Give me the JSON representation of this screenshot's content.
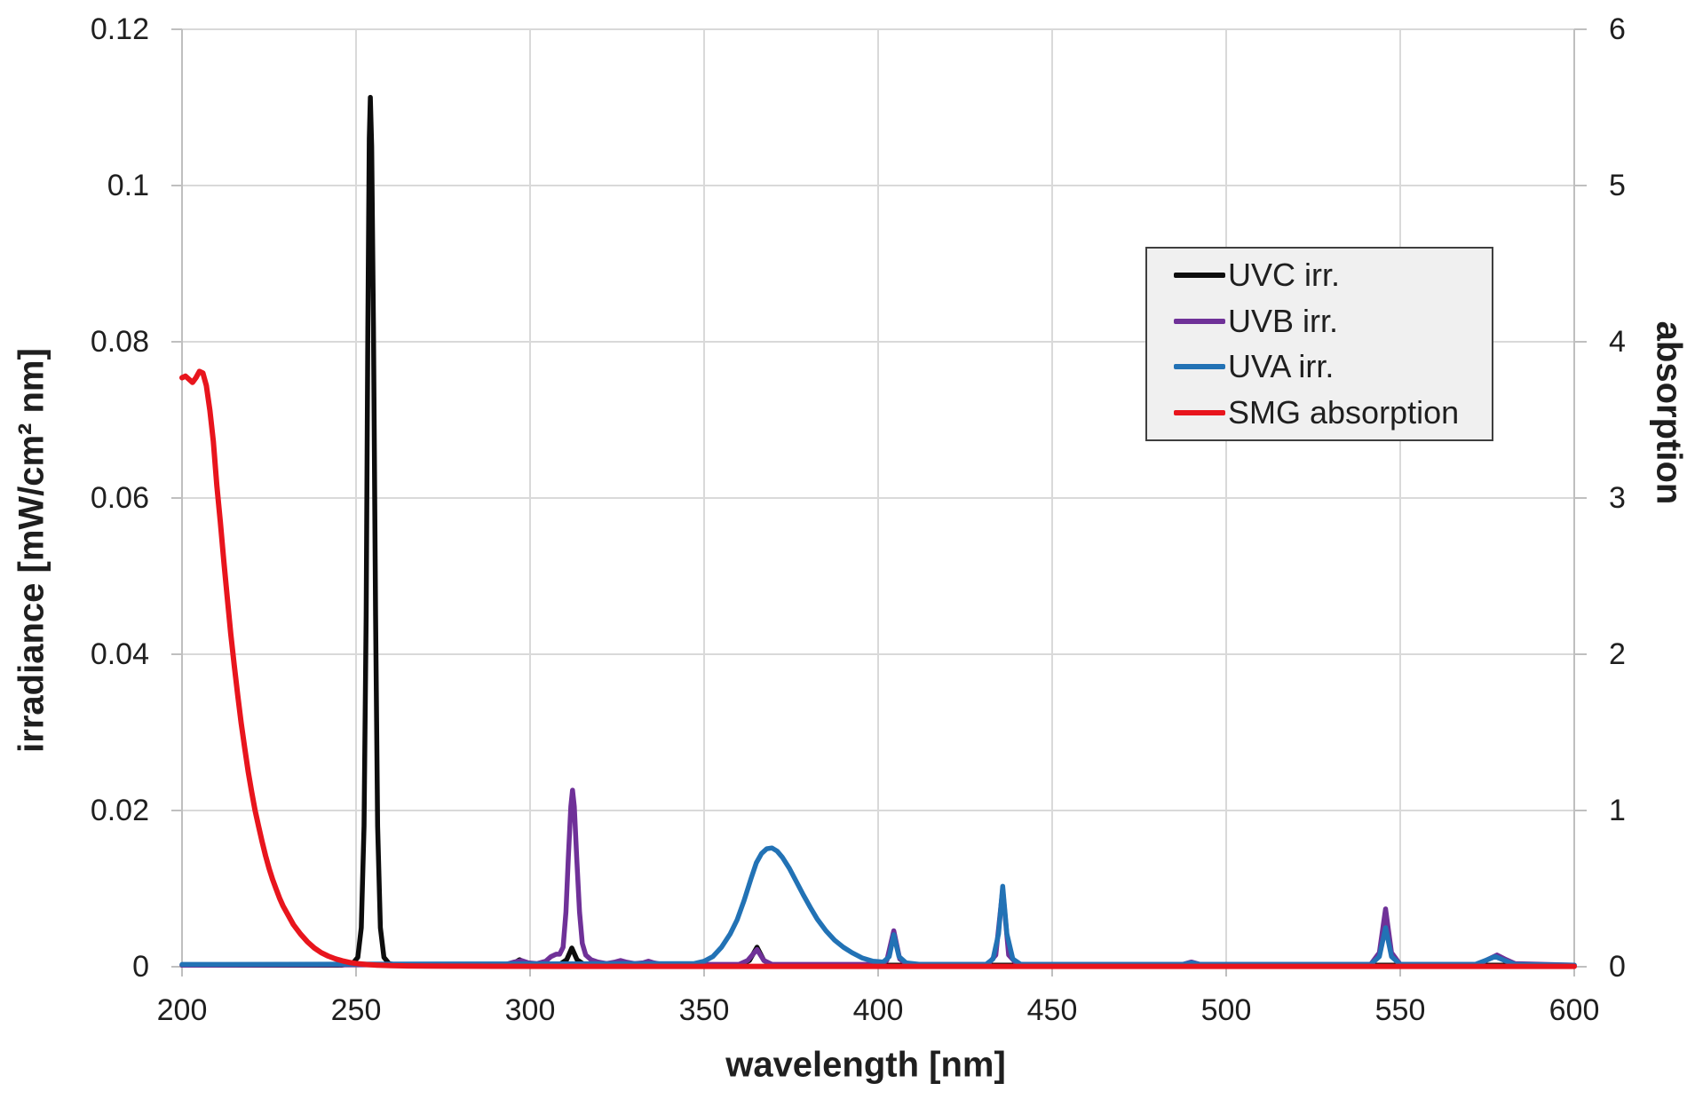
{
  "chart_data": {
    "type": "line",
    "title": "",
    "xlabel": "wavelength [nm]",
    "ylabel_left": "irradiance [mW/cm² nm]",
    "ylabel_right": "absorption",
    "grid": true,
    "legend_position": "upper-right",
    "colors": {
      "grid": "#d9d9d9",
      "axis": "#bfbfbf",
      "text": "#1f1f1f",
      "legend_bg": "#f0f0f0",
      "legend_border": "#3f3f3f",
      "background": "#ffffff"
    },
    "x_axis": {
      "min": 200,
      "max": 600,
      "tick_values": [
        200,
        250,
        300,
        350,
        400,
        450,
        500,
        550,
        600
      ],
      "tick_labels": [
        "200",
        "250",
        "300",
        "350",
        "400",
        "450",
        "500",
        "550",
        "600"
      ]
    },
    "y_left": {
      "min": 0,
      "max": 0.12,
      "tick_values": [
        0.12,
        0.1,
        0.08,
        0.06,
        0.04,
        0.02,
        0
      ],
      "tick_labels": [
        "0.12",
        "0.1",
        "0.08",
        "0.06",
        "0.04",
        "0.02",
        "0"
      ]
    },
    "y_right": {
      "min": 0,
      "max": 6,
      "tick_values": [
        6,
        5,
        4,
        3,
        2,
        1,
        0
      ],
      "tick_labels": [
        "6",
        "5",
        "4",
        "3",
        "2",
        "1",
        "0"
      ]
    },
    "series": [
      {
        "name": "UVC irr.",
        "color": "#0d0d0d",
        "axis": "left",
        "width": 5.5,
        "points": [
          [
            200,
            0.0002
          ],
          [
            246,
            0.0002
          ],
          [
            249,
            0.0004
          ],
          [
            250.5,
            0.0012
          ],
          [
            251.5,
            0.005
          ],
          [
            252.3,
            0.018
          ],
          [
            252.9,
            0.045
          ],
          [
            253.4,
            0.082
          ],
          [
            253.8,
            0.106
          ],
          [
            254.1,
            0.1113
          ],
          [
            254.5,
            0.105
          ],
          [
            255,
            0.082
          ],
          [
            255.6,
            0.045
          ],
          [
            256.2,
            0.018
          ],
          [
            257,
            0.005
          ],
          [
            258,
            0.0012
          ],
          [
            259.5,
            0.0004
          ],
          [
            262,
            0.0002
          ],
          [
            293.5,
            0.0002
          ],
          [
            295.5,
            0.0005
          ],
          [
            297,
            0.0009
          ],
          [
            298.5,
            0.0005
          ],
          [
            300.5,
            0.0003
          ],
          [
            308.5,
            0.0003
          ],
          [
            310.5,
            0.0009
          ],
          [
            312,
            0.0024
          ],
          [
            313.5,
            0.0009
          ],
          [
            315.5,
            0.0003
          ],
          [
            320,
            0.0002
          ],
          [
            360.5,
            0.0002
          ],
          [
            363,
            0.0008
          ],
          [
            365.2,
            0.0025
          ],
          [
            367.2,
            0.0008
          ],
          [
            369.5,
            0.0002
          ],
          [
            600,
            0.0002
          ]
        ]
      },
      {
        "name": "UVB irr.",
        "color": "#6f3198",
        "axis": "left",
        "width": 5.5,
        "points": [
          [
            200,
            0.0002
          ],
          [
            293,
            0.0003
          ],
          [
            295.5,
            0.0006
          ],
          [
            297.5,
            0.0008
          ],
          [
            299.5,
            0.0005
          ],
          [
            302,
            0.0004
          ],
          [
            304.5,
            0.0007
          ],
          [
            306,
            0.0013
          ],
          [
            307.5,
            0.0016
          ],
          [
            308.5,
            0.0016
          ],
          [
            309.5,
            0.0025
          ],
          [
            310.3,
            0.007
          ],
          [
            311,
            0.014
          ],
          [
            311.7,
            0.0205
          ],
          [
            312.2,
            0.0226
          ],
          [
            312.7,
            0.0205
          ],
          [
            313.4,
            0.014
          ],
          [
            314.2,
            0.007
          ],
          [
            315,
            0.003
          ],
          [
            316,
            0.0015
          ],
          [
            317.5,
            0.0009
          ],
          [
            319.5,
            0.0006
          ],
          [
            322,
            0.0004
          ],
          [
            324.5,
            0.0006
          ],
          [
            326,
            0.0008
          ],
          [
            327.5,
            0.0006
          ],
          [
            330,
            0.0004
          ],
          [
            332.5,
            0.0005
          ],
          [
            334,
            0.0007
          ],
          [
            335.5,
            0.0005
          ],
          [
            338,
            0.0003
          ],
          [
            360,
            0.0003
          ],
          [
            362.5,
            0.0008
          ],
          [
            365.2,
            0.0022
          ],
          [
            367.2,
            0.0008
          ],
          [
            369.5,
            0.0003
          ],
          [
            400.5,
            0.0003
          ],
          [
            402.5,
            0.0008
          ],
          [
            404.5,
            0.0046
          ],
          [
            406.2,
            0.001
          ],
          [
            408.5,
            0.0003
          ],
          [
            431.5,
            0.0003
          ],
          [
            433.8,
            0.0015
          ],
          [
            435.8,
            0.0099
          ],
          [
            437.5,
            0.0015
          ],
          [
            440,
            0.0003
          ],
          [
            487.5,
            0.0003
          ],
          [
            490,
            0.0006
          ],
          [
            492.5,
            0.0003
          ],
          [
            541.5,
            0.0003
          ],
          [
            544,
            0.0018
          ],
          [
            545.8,
            0.0074
          ],
          [
            547.5,
            0.0018
          ],
          [
            550,
            0.0003
          ],
          [
            572.5,
            0.0003
          ],
          [
            575.5,
            0.001
          ],
          [
            577.8,
            0.0015
          ],
          [
            580,
            0.001
          ],
          [
            583,
            0.0004
          ],
          [
            600,
            0.0002
          ]
        ]
      },
      {
        "name": "UVA irr.",
        "color": "#2272b5",
        "axis": "left",
        "width": 5.5,
        "points": [
          [
            200,
            0.0003
          ],
          [
            347,
            0.0004
          ],
          [
            350,
            0.0007
          ],
          [
            352.5,
            0.0013
          ],
          [
            355,
            0.0025
          ],
          [
            357.5,
            0.0042
          ],
          [
            359.5,
            0.006
          ],
          [
            361.5,
            0.0085
          ],
          [
            363.5,
            0.0113
          ],
          [
            365,
            0.0133
          ],
          [
            366.5,
            0.0145
          ],
          [
            368,
            0.0151
          ],
          [
            369.5,
            0.0152
          ],
          [
            371,
            0.0148
          ],
          [
            372.5,
            0.014
          ],
          [
            374.5,
            0.0126
          ],
          [
            376.5,
            0.0109
          ],
          [
            378.5,
            0.0092
          ],
          [
            380.5,
            0.0076
          ],
          [
            382.5,
            0.0061
          ],
          [
            385,
            0.0046
          ],
          [
            387.5,
            0.0034
          ],
          [
            390,
            0.0025
          ],
          [
            392.5,
            0.0018
          ],
          [
            395.5,
            0.0011
          ],
          [
            398.5,
            0.0007
          ],
          [
            401.5,
            0.0006
          ],
          [
            403.2,
            0.0013
          ],
          [
            404.5,
            0.0041
          ],
          [
            406,
            0.0013
          ],
          [
            408,
            0.0005
          ],
          [
            412,
            0.0003
          ],
          [
            431,
            0.0003
          ],
          [
            433,
            0.001
          ],
          [
            434.6,
            0.0042
          ],
          [
            435.8,
            0.0103
          ],
          [
            437,
            0.0042
          ],
          [
            438.7,
            0.001
          ],
          [
            441,
            0.0003
          ],
          [
            487.5,
            0.0003
          ],
          [
            490,
            0.0005
          ],
          [
            492.5,
            0.0003
          ],
          [
            541.5,
            0.0003
          ],
          [
            544,
            0.0013
          ],
          [
            545.8,
            0.005
          ],
          [
            547.5,
            0.0013
          ],
          [
            550,
            0.0003
          ],
          [
            571.5,
            0.0003
          ],
          [
            574.5,
            0.0008
          ],
          [
            577.3,
            0.0013
          ],
          [
            580,
            0.0008
          ],
          [
            583,
            0.0003
          ],
          [
            600,
            0.0002
          ]
        ]
      },
      {
        "name": "SMG absorption",
        "color": "#e8151d",
        "axis": "right",
        "width": 6,
        "points": [
          [
            200,
            3.77
          ],
          [
            201,
            3.78
          ],
          [
            202,
            3.76
          ],
          [
            203,
            3.74
          ],
          [
            204,
            3.77
          ],
          [
            205,
            3.81
          ],
          [
            206,
            3.8
          ],
          [
            207,
            3.72
          ],
          [
            208,
            3.56
          ],
          [
            209,
            3.36
          ],
          [
            210,
            3.08
          ],
          [
            211,
            2.85
          ],
          [
            212,
            2.6
          ],
          [
            213,
            2.36
          ],
          [
            214,
            2.13
          ],
          [
            215,
            1.93
          ],
          [
            216,
            1.74
          ],
          [
            217,
            1.56
          ],
          [
            218,
            1.4
          ],
          [
            219,
            1.25
          ],
          [
            220,
            1.12
          ],
          [
            221,
            1.0
          ],
          [
            222,
            0.9
          ],
          [
            223,
            0.8
          ],
          [
            224,
            0.71
          ],
          [
            225,
            0.63
          ],
          [
            226,
            0.56
          ],
          [
            227,
            0.5
          ],
          [
            228,
            0.44
          ],
          [
            229,
            0.39
          ],
          [
            230,
            0.35
          ],
          [
            232,
            0.27
          ],
          [
            234,
            0.21
          ],
          [
            236,
            0.16
          ],
          [
            238,
            0.12
          ],
          [
            240,
            0.09
          ],
          [
            242,
            0.068
          ],
          [
            244,
            0.051
          ],
          [
            246,
            0.038
          ],
          [
            248,
            0.028
          ],
          [
            250,
            0.021
          ],
          [
            253,
            0.014
          ],
          [
            256,
            0.01
          ],
          [
            260,
            0.007
          ],
          [
            265,
            0.005
          ],
          [
            270,
            0.004
          ],
          [
            280,
            0.0032
          ],
          [
            290,
            0.0027
          ],
          [
            310,
            0.0022
          ],
          [
            340,
            0.002
          ],
          [
            400,
            0.002
          ],
          [
            500,
            0.002
          ],
          [
            600,
            0.002
          ]
        ]
      }
    ]
  }
}
